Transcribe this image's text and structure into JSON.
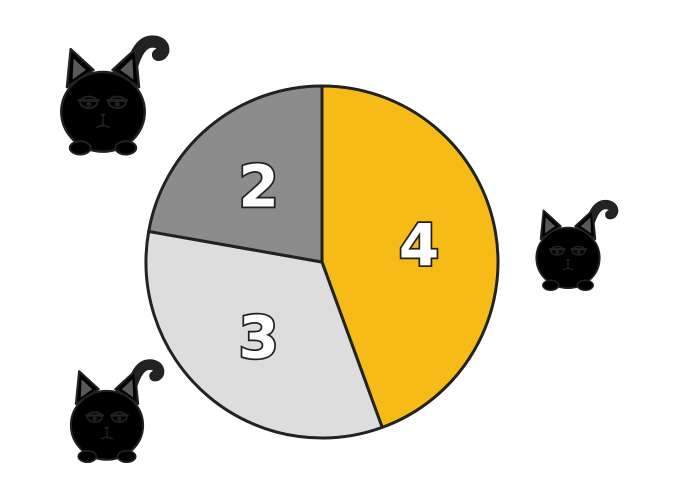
{
  "chart_data": {
    "type": "pie",
    "slices": [
      {
        "label": "4",
        "value": 4,
        "color": "#F6BB16"
      },
      {
        "label": "3",
        "value": 3,
        "color": "#DDDDDD"
      },
      {
        "label": "2",
        "value": 2,
        "color": "#8C8C8C"
      }
    ],
    "start": "top",
    "direction": "clockwise",
    "legend": [
      {
        "icon": "cat-icon",
        "color": "#F6BB16",
        "placement": "right"
      },
      {
        "icon": "cat-icon",
        "color": "#DDDDDD",
        "placement": "bottom-left"
      },
      {
        "icon": "cat-icon",
        "color": "#6E6E6E",
        "placement": "top-left"
      }
    ]
  }
}
